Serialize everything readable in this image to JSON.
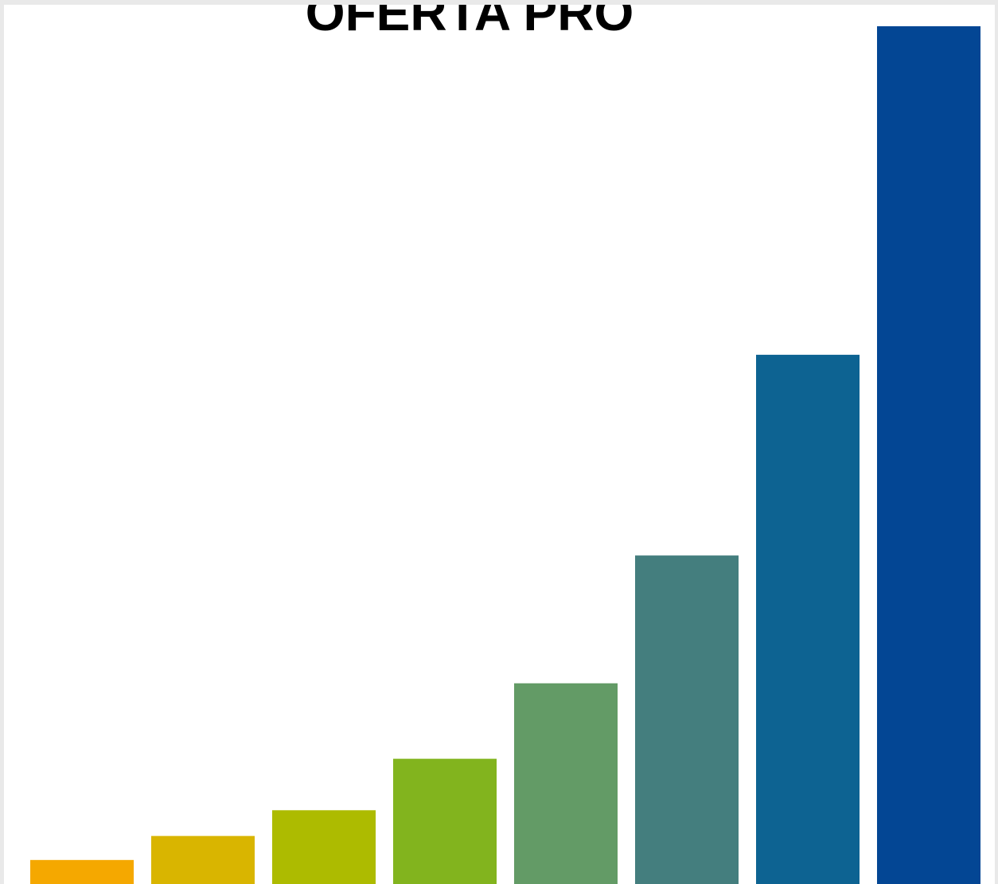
{
  "chart_data": {
    "type": "bar",
    "title": "OFERTA PRO",
    "xlabel": "",
    "ylabel": "",
    "categories": [
      "",
      "",
      "",
      "",
      "",
      "",
      "",
      ""
    ],
    "values": [
      2.8,
      5.6,
      8.6,
      14.6,
      23.4,
      38.3,
      61.7,
      100
    ],
    "colors": [
      "#f5a800",
      "#d9b500",
      "#adbb00",
      "#82b41e",
      "#639b66",
      "#447e7e",
      "#0d6392",
      "#034694"
    ],
    "ylim": [
      0,
      100
    ],
    "grid": false,
    "legend": "none"
  }
}
